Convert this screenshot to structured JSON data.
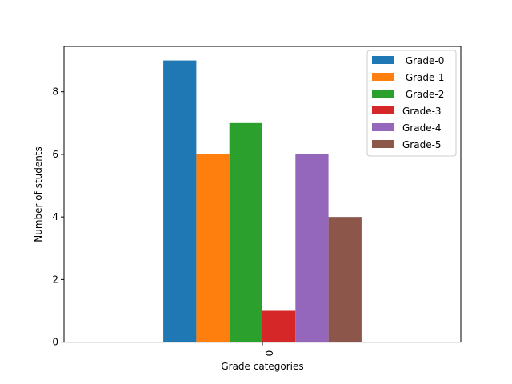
{
  "chart_data": {
    "type": "bar",
    "title": "",
    "xlabel": "Grade categories",
    "ylabel": "Number of students",
    "categories": [
      "0"
    ],
    "ylim": [
      0,
      9.45
    ],
    "yticks": [
      0,
      2,
      4,
      6,
      8
    ],
    "grid": false,
    "legend_position": "top-right",
    "series": [
      {
        "name": " Grade-0",
        "values": [
          9
        ],
        "color": "#1f77b4"
      },
      {
        "name": " Grade-1",
        "values": [
          6
        ],
        "color": "#ff7f0e"
      },
      {
        "name": " Grade-2",
        "values": [
          7
        ],
        "color": "#2ca02c"
      },
      {
        "name": "Grade-3",
        "values": [
          1
        ],
        "color": "#d62728"
      },
      {
        "name": "Grade-4",
        "values": [
          6
        ],
        "color": "#9467bd"
      },
      {
        "name": "Grade-5",
        "values": [
          4
        ],
        "color": "#8c564b"
      }
    ]
  }
}
